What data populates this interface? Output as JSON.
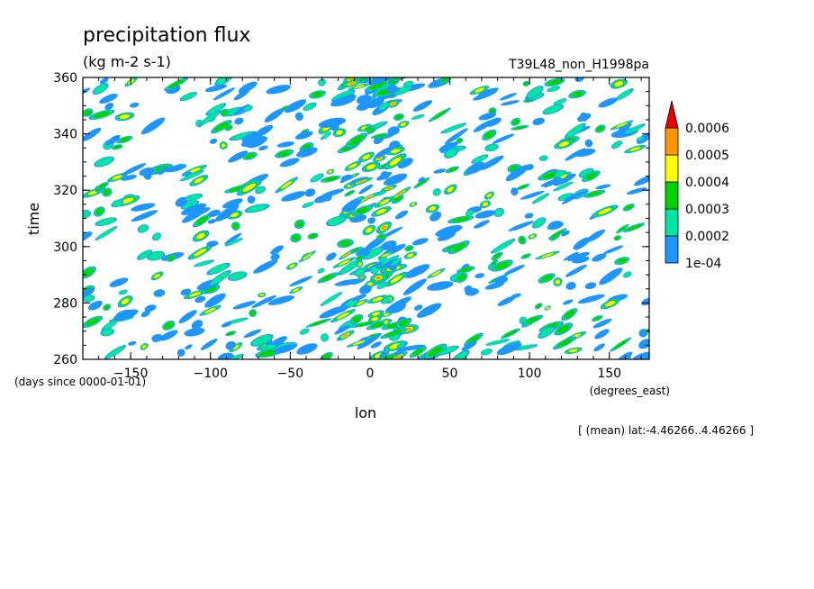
{
  "chart_data": {
    "type": "heatmap",
    "title": "precipitation flux",
    "units": "(kg m-2 s-1)",
    "run_label": "T39L48_non_H1998pa",
    "xlabel": "lon",
    "x_units": "(degrees_east)",
    "ylabel": "time",
    "y_units": "(days since 0000-01-01)",
    "footnote": "[ (mean) lat:-4.46266..4.46266 ]",
    "xlim": [
      -180,
      175
    ],
    "ylim": [
      260,
      360
    ],
    "x_ticks": [
      -150,
      -100,
      -50,
      0,
      50,
      100,
      150
    ],
    "x_tick_labels": [
      "−150",
      "−100",
      "−50",
      "0",
      "50",
      "100",
      "150"
    ],
    "y_ticks": [
      260,
      280,
      300,
      320,
      340,
      360
    ],
    "y_tick_labels": [
      "260",
      "280",
      "300",
      "320",
      "340",
      "360"
    ],
    "colorbar": {
      "levels": [
        0.0001,
        0.0002,
        0.0003,
        0.0004,
        0.0005,
        0.0006
      ],
      "labels": [
        "1e-04",
        "0.0002",
        "0.0003",
        "0.0004",
        "0.0005",
        "0.0006"
      ],
      "colors": [
        "#1e96ff",
        "#00e6a0",
        "#00d200",
        "#ffff00",
        "#ff9600",
        "#e60000"
      ],
      "extend": "max"
    }
  }
}
